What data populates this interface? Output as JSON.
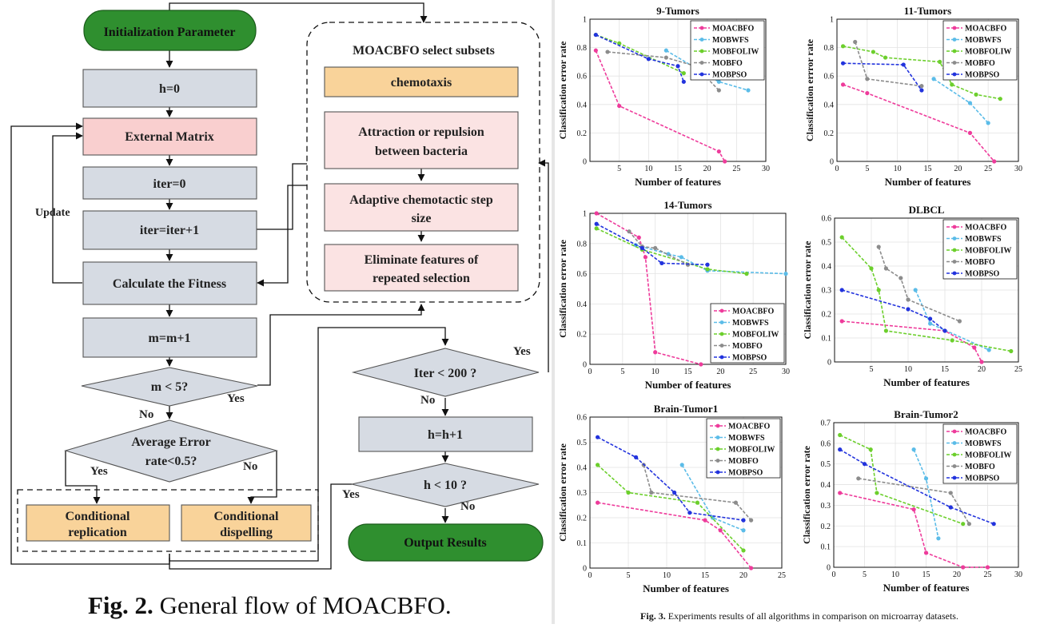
{
  "flowchart": {
    "init": "Initialization Parameter",
    "h0": "h=0",
    "external": "External Matrix",
    "iter0": "iter=0",
    "iterinc": "iter=iter+1",
    "fitness": "Calculate the Fitness",
    "minc": "m=m+1",
    "mcond": "m < 5?",
    "avg_l1": "Average Error",
    "avg_l2": "rate<0.5?",
    "rep_l1": "Conditional",
    "rep_l2": "replication",
    "disp_l1": "Conditional",
    "disp_l2": "dispelling",
    "update": "Update",
    "select_title": "MOACBFO select subsets",
    "chemotaxis": "chemotaxis",
    "attr_l1": "Attraction or repulsion",
    "attr_l2": "between bacteria",
    "adapt_l1": "Adaptive chemotactic step",
    "adapt_l2": "size",
    "elim_l1": "Eliminate features of",
    "elim_l2": "repeated selection",
    "itercond": "Iter < 200 ?",
    "hinc": "h=h+1",
    "hcond": "h < 10 ?",
    "output": "Output  Results",
    "yes": "Yes",
    "no": "No",
    "fig2_bold": "Fig. 2.",
    "fig2_text": " General flow of MOACBFO."
  },
  "fig3_caption": {
    "bold": "Fig. 3.",
    "text": " Experiments results of all algorithms in comparison on microarray datasets."
  },
  "legend_labels": [
    "MOACBFO",
    "MOBWFS",
    "MOBFOLIW",
    "MOBFO",
    "MOBPSO"
  ],
  "colors": {
    "MOACBFO": "#ee3b9b",
    "MOBWFS": "#5bbce8",
    "MOBFOLIW": "#6ccf2c",
    "MOBFO": "#8c8c8c",
    "MOBPSO": "#2233dd",
    "gray_box": "#d6dbe3",
    "pink_box": "#f9cfcf",
    "pink_light": "#fbe3e3",
    "orange_box": "#f9d39a",
    "green_box": "#2f8f2f"
  },
  "chart_data": [
    {
      "type": "line",
      "title": "9-Tumors",
      "xlabel": "Number of features",
      "ylabel": "Classification error rate",
      "xlim": [
        0,
        30
      ],
      "ylim": [
        0,
        1
      ],
      "xticks": [
        5,
        10,
        15,
        20,
        25,
        30
      ],
      "yticks": [
        0,
        0.2,
        0.4,
        0.6,
        0.8,
        1
      ],
      "legend": "top-right",
      "series": [
        {
          "name": "MOACBFO",
          "x": [
            1,
            5,
            22,
            23
          ],
          "y": [
            0.78,
            0.39,
            0.07,
            0.0
          ]
        },
        {
          "name": "MOBWFS",
          "x": [
            13,
            22,
            27
          ],
          "y": [
            0.78,
            0.56,
            0.5
          ]
        },
        {
          "name": "MOBFOLIW",
          "x": [
            1,
            5,
            16
          ],
          "y": [
            0.89,
            0.83,
            0.62
          ]
        },
        {
          "name": "MOBFO",
          "x": [
            3,
            13,
            18,
            22
          ],
          "y": [
            0.77,
            0.73,
            0.67,
            0.5
          ]
        },
        {
          "name": "MOBPSO",
          "x": [
            1,
            10,
            15,
            16
          ],
          "y": [
            0.89,
            0.72,
            0.67,
            0.56
          ]
        }
      ]
    },
    {
      "type": "line",
      "title": "11-Tumors",
      "xlabel": "Number of features",
      "ylabel": "Classification errror rate",
      "xlim": [
        0,
        30
      ],
      "ylim": [
        0,
        1
      ],
      "xticks": [
        0,
        5,
        10,
        15,
        20,
        25,
        30
      ],
      "yticks": [
        0,
        0.2,
        0.4,
        0.6,
        0.8,
        1
      ],
      "legend": "top-right",
      "series": [
        {
          "name": "MOACBFO",
          "x": [
            1,
            5,
            22,
            26
          ],
          "y": [
            0.54,
            0.48,
            0.2,
            0.0
          ]
        },
        {
          "name": "MOBWFS",
          "x": [
            16,
            22,
            25
          ],
          "y": [
            0.58,
            0.41,
            0.27
          ]
        },
        {
          "name": "MOBFOLIW",
          "x": [
            1,
            6,
            8,
            17,
            19,
            23,
            27
          ],
          "y": [
            0.81,
            0.77,
            0.73,
            0.7,
            0.54,
            0.47,
            0.44
          ]
        },
        {
          "name": "MOBFO",
          "x": [
            3,
            5,
            14
          ],
          "y": [
            0.84,
            0.58,
            0.53
          ]
        },
        {
          "name": "MOBPSO",
          "x": [
            1,
            11,
            14
          ],
          "y": [
            0.69,
            0.68,
            0.5
          ]
        }
      ]
    },
    {
      "type": "line",
      "title": "14-Tumors",
      "xlabel": "Number of features",
      "ylabel": "Classification error rate",
      "xlim": [
        0,
        30
      ],
      "ylim": [
        0,
        1
      ],
      "xticks": [
        0,
        5,
        10,
        15,
        20,
        25,
        30
      ],
      "yticks": [
        0,
        0.2,
        0.4,
        0.6,
        0.8,
        1
      ],
      "legend": "bottom-right",
      "series": [
        {
          "name": "MOACBFO",
          "x": [
            1,
            7.5,
            8.5,
            10,
            17
          ],
          "y": [
            1.0,
            0.84,
            0.71,
            0.08,
            0.0
          ]
        },
        {
          "name": "MOBWFS",
          "x": [
            7,
            12,
            14,
            18,
            30
          ],
          "y": [
            0.79,
            0.73,
            0.71,
            0.62,
            0.6
          ]
        },
        {
          "name": "MOBFOLIW",
          "x": [
            1,
            8,
            18,
            24
          ],
          "y": [
            0.9,
            0.76,
            0.63,
            0.6
          ]
        },
        {
          "name": "MOBFO",
          "x": [
            6,
            8,
            10,
            15
          ],
          "y": [
            0.88,
            0.78,
            0.77,
            0.66
          ]
        },
        {
          "name": "MOBPSO",
          "x": [
            1,
            8,
            11,
            18
          ],
          "y": [
            0.93,
            0.77,
            0.67,
            0.66
          ]
        }
      ]
    },
    {
      "type": "line",
      "title": "DLBCL",
      "xlabel": "Number of features",
      "ylabel": "Classification error rate",
      "xlim": [
        0,
        25
      ],
      "ylim": [
        0,
        0.6
      ],
      "xticks": [
        5,
        10,
        15,
        20,
        25
      ],
      "yticks": [
        0,
        0.1,
        0.2,
        0.3,
        0.4,
        0.5,
        0.6
      ],
      "legend": "top-right",
      "series": [
        {
          "name": "MOACBFO",
          "x": [
            1,
            15,
            19,
            20
          ],
          "y": [
            0.17,
            0.13,
            0.06,
            0.0
          ]
        },
        {
          "name": "MOBWFS",
          "x": [
            11,
            13,
            21
          ],
          "y": [
            0.3,
            0.16,
            0.05
          ]
        },
        {
          "name": "MOBFOLIW",
          "x": [
            1,
            5,
            6,
            7,
            16,
            24
          ],
          "y": [
            0.52,
            0.39,
            0.3,
            0.13,
            0.09,
            0.045
          ]
        },
        {
          "name": "MOBFO",
          "x": [
            6,
            7,
            9,
            10,
            17
          ],
          "y": [
            0.48,
            0.39,
            0.35,
            0.26,
            0.17
          ]
        },
        {
          "name": "MOBPSO",
          "x": [
            1,
            10,
            13,
            15
          ],
          "y": [
            0.3,
            0.22,
            0.18,
            0.13
          ]
        }
      ]
    },
    {
      "type": "line",
      "title": "Brain-Tumor1",
      "xlabel": "Number of features",
      "ylabel": "Classification error rate",
      "xlim": [
        0,
        25
      ],
      "ylim": [
        0,
        0.6
      ],
      "xticks": [
        0,
        5,
        10,
        15,
        20,
        25
      ],
      "yticks": [
        0,
        0.1,
        0.2,
        0.3,
        0.4,
        0.5,
        0.6
      ],
      "legend": "top-right",
      "series": [
        {
          "name": "MOACBFO",
          "x": [
            1,
            15,
            17,
            21
          ],
          "y": [
            0.26,
            0.19,
            0.15,
            0.0
          ]
        },
        {
          "name": "MOBWFS",
          "x": [
            12,
            16,
            20
          ],
          "y": [
            0.41,
            0.2,
            0.15
          ]
        },
        {
          "name": "MOBFOLIW",
          "x": [
            1,
            5,
            14,
            20
          ],
          "y": [
            0.41,
            0.3,
            0.26,
            0.07
          ]
        },
        {
          "name": "MOBFO",
          "x": [
            7,
            8,
            19,
            21
          ],
          "y": [
            0.41,
            0.3,
            0.26,
            0.19
          ]
        },
        {
          "name": "MOBPSO",
          "x": [
            1,
            6,
            11,
            13,
            20
          ],
          "y": [
            0.52,
            0.44,
            0.3,
            0.22,
            0.19
          ]
        }
      ]
    },
    {
      "type": "line",
      "title": "Brain-Tumor2",
      "xlabel": "Number of features",
      "ylabel": "Classification error rate",
      "xlim": [
        0,
        30
      ],
      "ylim": [
        0,
        0.7
      ],
      "xticks": [
        0,
        5,
        10,
        15,
        20,
        25,
        30
      ],
      "yticks": [
        0,
        0.1,
        0.2,
        0.3,
        0.4,
        0.5,
        0.6,
        0.7
      ],
      "legend": "top-right",
      "series": [
        {
          "name": "MOACBFO",
          "x": [
            1,
            13,
            15,
            21,
            25
          ],
          "y": [
            0.36,
            0.28,
            0.07,
            0.0,
            0.0
          ]
        },
        {
          "name": "MOBWFS",
          "x": [
            13,
            15,
            17
          ],
          "y": [
            0.57,
            0.43,
            0.14
          ]
        },
        {
          "name": "MOBFOLIW",
          "x": [
            1,
            6,
            7,
            21
          ],
          "y": [
            0.64,
            0.57,
            0.36,
            0.21
          ]
        },
        {
          "name": "MOBFO",
          "x": [
            4,
            19,
            22
          ],
          "y": [
            0.43,
            0.36,
            0.21
          ]
        },
        {
          "name": "MOBPSO",
          "x": [
            1,
            5,
            19,
            26
          ],
          "y": [
            0.57,
            0.5,
            0.29,
            0.21
          ]
        }
      ]
    }
  ]
}
